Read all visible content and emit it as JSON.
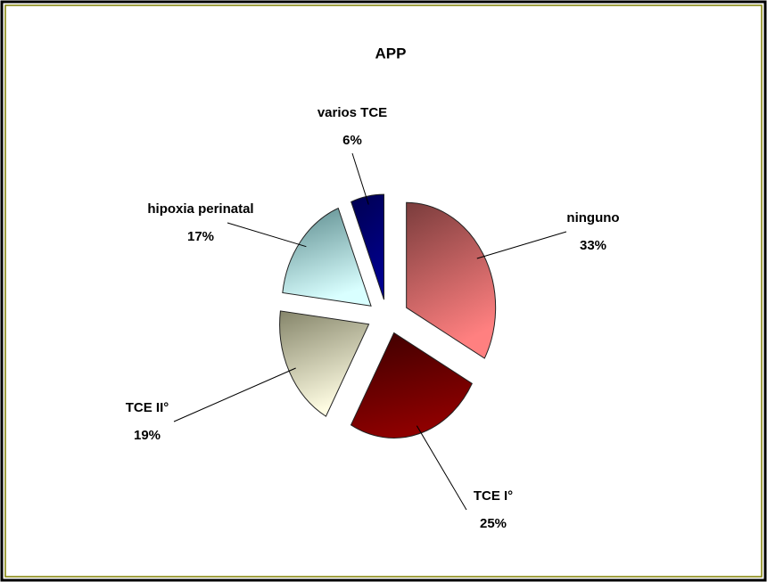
{
  "chart_data": {
    "type": "pie",
    "title": "APP",
    "categories": [
      "ninguno",
      "TCE I°",
      "TCE II°",
      "hipoxia perinatal",
      "varios TCE"
    ],
    "values": [
      33,
      25,
      19,
      17,
      6
    ],
    "value_labels": [
      "33%",
      "25%",
      "19%",
      "17%",
      "6%"
    ],
    "colors": [
      [
        "#7a3c3c",
        "#ff8080"
      ],
      [
        "#3c0000",
        "#8e0000"
      ],
      [
        "#85856a",
        "#fffde3"
      ],
      [
        "#5b8a8c",
        "#d9ffff"
      ],
      [
        "#000050",
        "#00008e"
      ]
    ]
  }
}
